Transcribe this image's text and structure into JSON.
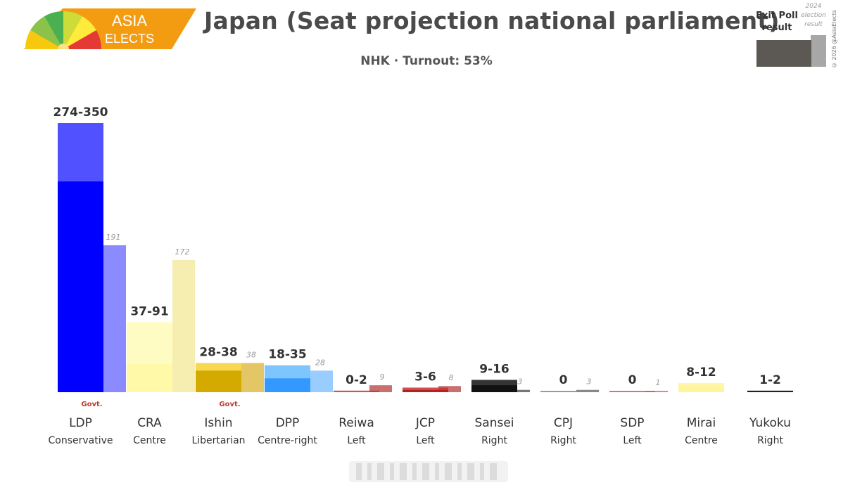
{
  "header": {
    "title": "Japan (Seat projection national parliament)",
    "subtitle": "NHK · Turnout: 53%",
    "logo_line1": "ASIA",
    "logo_line2": "ELECTS"
  },
  "legend": {
    "exit_label": "Exit Poll result",
    "prev_label": "2024 election result",
    "copyright": "© 2026 @AsiaElects"
  },
  "colors": {
    "accent_orange": "#f39c12",
    "govt_label": "#c0392b"
  },
  "chart_data": {
    "type": "bar",
    "title": "Japan (Seat projection national parliament)",
    "subtitle": "NHK · Turnout: 53%",
    "ylim": [
      0,
      350
    ],
    "grid": false,
    "categories": [
      "LDP",
      "CRA",
      "Ishin",
      "DPP",
      "Reiwa",
      "JCP",
      "Sansei",
      "CPJ",
      "SDP",
      "Mirai",
      "Yukoku"
    ],
    "ideology": [
      "Conservative",
      "Centre",
      "Libertarian",
      "Centre-right",
      "Left",
      "Left",
      "Right",
      "Right",
      "Left",
      "Centre",
      "Right"
    ],
    "govt": [
      "Govt.",
      "",
      "Govt.",
      "",
      "",
      "",
      "",
      "",
      "",
      "",
      ""
    ],
    "series": [
      {
        "name": "Exit Poll result",
        "low": [
          274,
          37,
          28,
          18,
          0,
          3,
          9,
          0,
          0,
          8,
          1
        ],
        "high": [
          350,
          91,
          38,
          35,
          2,
          6,
          16,
          0,
          0,
          12,
          2
        ],
        "labels": [
          "274-350",
          "37-91",
          "28-38",
          "18-35",
          "0-2",
          "3-6",
          "9-16",
          "0",
          "0",
          "8-12",
          "1-2"
        ]
      },
      {
        "name": "2024 election result",
        "values": [
          191,
          172,
          38,
          28,
          9,
          8,
          3,
          3,
          1,
          null,
          null
        ],
        "labels": [
          "191",
          "172",
          "38",
          "28",
          "9",
          "8",
          "3",
          "3",
          "1",
          "",
          ""
        ]
      }
    ],
    "bar_colors": [
      "#0000ff",
      "#fff9a8",
      "#d4aa00",
      "#3399ff",
      "#b22222",
      "#b22222",
      "#111111",
      "#888888",
      "#cc3333",
      "#fff59d",
      "#111111"
    ],
    "bar_light_colors": [
      "#3333ff",
      "#fffbb8",
      "#f5d232",
      "#66bbff",
      "#cc3333",
      "#cc3333",
      "#111111",
      "#888888",
      "#dd5555",
      "#fff59d",
      "#111111"
    ],
    "prev_colors": [
      "#8b8bff",
      "#f6eeb0",
      "#e3c766",
      "#99ccff",
      "#c87070",
      "#c87070",
      "#777777",
      "#888888",
      "#dd8888",
      "#cccccc",
      "#cccccc"
    ]
  }
}
